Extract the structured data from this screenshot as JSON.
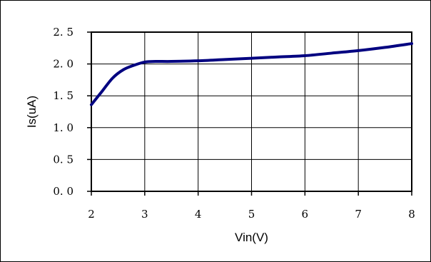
{
  "chart_data": {
    "type": "line",
    "title": "",
    "xlabel": "Vin(V)",
    "ylabel": "Is(uA)",
    "xlim": [
      2,
      8
    ],
    "ylim": [
      0,
      2.5
    ],
    "x_ticks": [
      "2",
      "3",
      "4",
      "5",
      "6",
      "7",
      "8"
    ],
    "y_ticks": [
      "0. 0",
      "0. 5",
      "1. 0",
      "1. 5",
      "2. 0",
      "2. 5"
    ],
    "grid": "horizontal",
    "legend": "none",
    "series": [
      {
        "color": "#000080",
        "x": [
          2.0,
          2.2,
          2.4,
          2.6,
          2.8,
          3.0,
          3.2,
          3.5,
          4.0,
          4.5,
          5.0,
          5.5,
          6.0,
          6.5,
          7.0,
          7.5,
          8.0
        ],
        "y": [
          1.36,
          1.57,
          1.78,
          1.91,
          1.98,
          2.03,
          2.04,
          2.04,
          2.05,
          2.07,
          2.09,
          2.11,
          2.13,
          2.17,
          2.21,
          2.26,
          2.32
        ]
      }
    ]
  }
}
